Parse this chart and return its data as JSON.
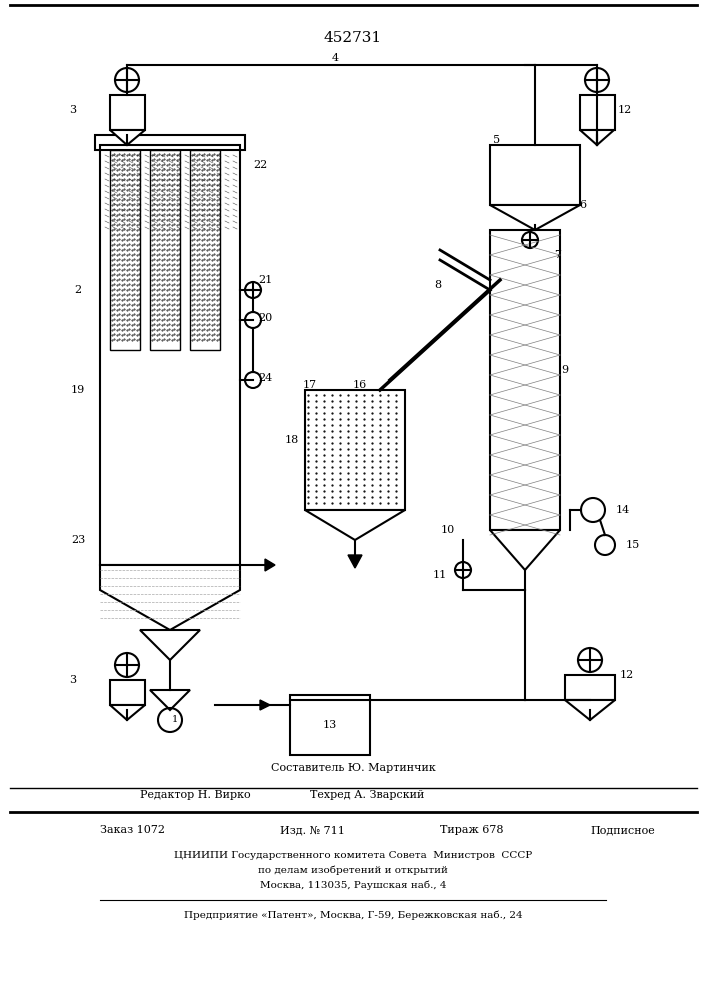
{
  "patent_number": "452731",
  "bg_color": "#ffffff",
  "line_color": "#000000",
  "fig_width": 7.07,
  "fig_height": 10.0,
  "dpi": 100,
  "bottom_texts": {
    "composer": "Составитель Ю. Мартинчик",
    "editor": "Редактор Н. Вирко",
    "techred": "Техред А. Зварский",
    "zakaz": "Заказ 1072",
    "izd": "Изд. № 711",
    "tirazh": "Тираж 678",
    "podpisnoe": "Подписное",
    "line1": "ЦНИИПИ Государственного комитета Совета  Министров  СССР",
    "line2": "по делам изобретений и открытий",
    "line3": "Москва, 113035, Раушская наб., 4",
    "line4": "Предприятие «Патент», Москва, Г-59, Бережковская наб., 24"
  }
}
